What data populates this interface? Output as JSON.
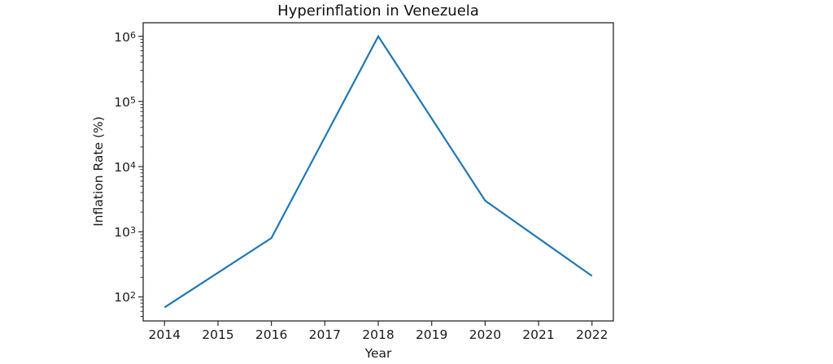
{
  "chart_data": {
    "type": "line",
    "title": "Hyperinflation in Venezuela",
    "xlabel": "Year",
    "ylabel": "Inflation Rate (%)",
    "x": [
      2014,
      2016,
      2018,
      2020,
      2022
    ],
    "y": [
      69,
      800,
      1000000,
      3000,
      210
    ],
    "series": [
      {
        "name": "Inflation Rate (%)",
        "x": [
          2014,
          2016,
          2018,
          2020,
          2022
        ],
        "values": [
          69,
          800,
          1000000,
          3000,
          210
        ]
      }
    ],
    "y_scale": "log",
    "xlim": [
      2013.6,
      2022.4
    ],
    "ylim_log10": [
      1.631,
      6.208
    ],
    "xticks": [
      2014,
      2015,
      2016,
      2017,
      2018,
      2019,
      2020,
      2021,
      2022
    ],
    "ytick_base": "10",
    "ytick_exponents": [
      2,
      3,
      4,
      5,
      6
    ],
    "grid": false,
    "legend": null,
    "colors": {
      "line": "#1f77b4",
      "axis": "#262626",
      "text": "#1a1a1a",
      "background": "#ffffff"
    }
  }
}
